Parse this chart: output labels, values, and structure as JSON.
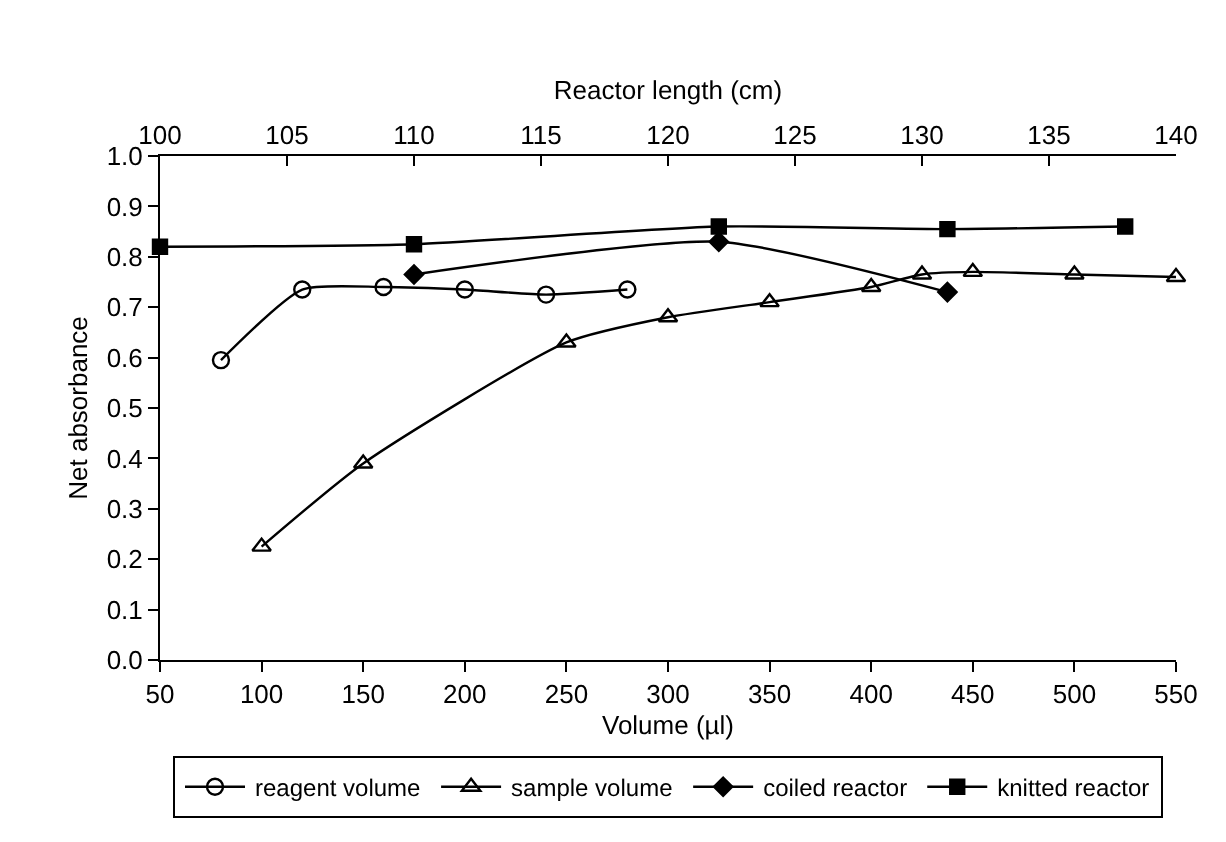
{
  "chart_data": {
    "type": "line",
    "xlabel": "Volume (µl)",
    "x2label": "Reactor length (cm)",
    "ylabel": "Net absorbance",
    "xlim": [
      50,
      550
    ],
    "xticks": [
      50,
      100,
      150,
      200,
      250,
      300,
      350,
      400,
      450,
      500,
      550
    ],
    "x2lim": [
      100,
      140
    ],
    "x2ticks": [
      100,
      105,
      110,
      115,
      120,
      125,
      130,
      135,
      140
    ],
    "ylim": [
      0,
      1.0
    ],
    "yticks": [
      {
        "value": 0,
        "label": "0.0"
      },
      0.1,
      0.2,
      0.3,
      0.4,
      0.5,
      0.6,
      0.7,
      0.8,
      0.9,
      {
        "value": 1,
        "label": "1.0"
      }
    ],
    "legend": "bottom",
    "line_style": "solid",
    "series": [
      {
        "name": "reagent volume",
        "color": "#000000",
        "marker": "circle",
        "x": [
          80,
          120,
          160,
          200,
          240,
          280
        ],
        "values": [
          0.595,
          0.735,
          0.74,
          0.735,
          0.725,
          0.735
        ]
      },
      {
        "name": "sample volume",
        "color": "#000000",
        "marker": "triangle",
        "x": [
          100,
          150,
          250,
          300,
          350,
          400,
          425,
          450,
          500,
          550
        ],
        "values": [
          0.225,
          0.39,
          0.63,
          0.68,
          0.71,
          0.74,
          0.765,
          0.77,
          0.765,
          0.76
        ]
      },
      {
        "name": "coiled reactor",
        "color": "#000000",
        "marker": "diamond",
        "axis": "x2",
        "x": [
          110,
          122,
          131
        ],
        "values": [
          0.765,
          0.83,
          0.73
        ]
      },
      {
        "name": "knitted reactor",
        "color": "#000000",
        "marker": "square",
        "axis": "x2",
        "x": [
          100,
          110,
          122,
          131,
          138
        ],
        "values": [
          0.82,
          0.825,
          0.86,
          0.855,
          0.86
        ]
      }
    ]
  }
}
